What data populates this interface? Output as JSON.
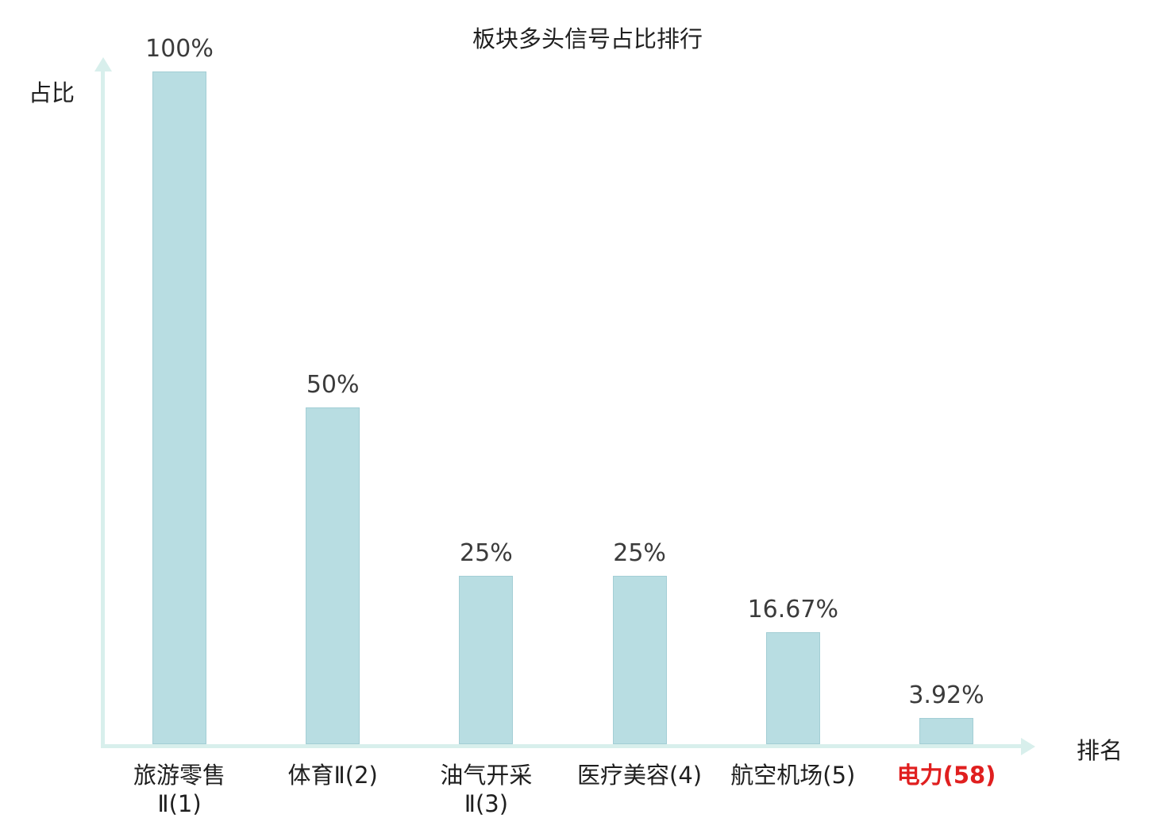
{
  "title": "板块多头信号占比排行",
  "ylabel": "占比",
  "xlabel": "排名",
  "chart_data": {
    "type": "bar",
    "categories": [
      "旅游零售Ⅱ(1)",
      "体育Ⅱ(2)",
      "油气开采Ⅱ(3)",
      "医疗美容(4)",
      "航空机场(5)",
      "电力(58)"
    ],
    "category_lines": [
      [
        "旅游零售",
        "Ⅱ(1)"
      ],
      [
        "体育Ⅱ(2)"
      ],
      [
        "油气开采",
        "Ⅱ(3)"
      ],
      [
        "医疗美容(4)"
      ],
      [
        "航空机场(5)"
      ],
      [
        "电力(58)"
      ]
    ],
    "values": [
      100,
      50,
      25,
      25,
      16.67,
      3.92
    ],
    "value_labels": [
      "100%",
      "50%",
      "25%",
      "25%",
      "16.67%",
      "3.92%"
    ],
    "highlight_index": 5,
    "ylim": [
      0,
      100
    ],
    "grid": false,
    "legend": "none",
    "bar_color": "#b8dde2",
    "bar_border_color": "#a3ced5",
    "axis_color": "#d8efec",
    "value_label_color": "#3b3b3b",
    "category_label_color": "#1f1f1f",
    "highlight_color": "#e01f1f"
  }
}
